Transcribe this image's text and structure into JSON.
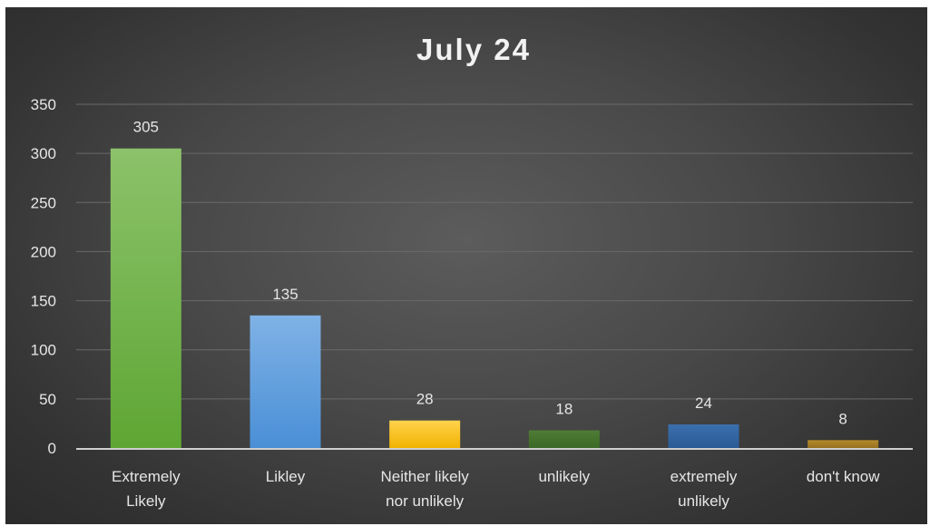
{
  "chart_data": {
    "type": "bar",
    "title": "July 24",
    "xlabel": "",
    "ylabel": "",
    "categories": [
      [
        "Extremely",
        "Likely"
      ],
      [
        "Likley"
      ],
      [
        "Neither likely",
        "nor unlikely"
      ],
      [
        "unlikely"
      ],
      [
        "extremely",
        "unlikely"
      ],
      [
        "don't know"
      ]
    ],
    "values": [
      305,
      135,
      28,
      18,
      24,
      8
    ],
    "data_labels": [
      "305",
      "135",
      "28",
      "18",
      "24",
      "8"
    ],
    "ylim": [
      0,
      350
    ],
    "yticks": [
      0,
      50,
      100,
      150,
      200,
      250,
      300,
      350
    ],
    "ytick_labels": [
      "0",
      "50",
      "100",
      "150",
      "200",
      "250",
      "300",
      "350"
    ],
    "grid": true,
    "legend": "none",
    "bar_colors": [
      {
        "top": "#8cc26a",
        "bottom": "#5ea634"
      },
      {
        "top": "#7fb2e6",
        "bottom": "#4a8fd6"
      },
      {
        "top": "#ffd34d",
        "bottom": "#f2b300"
      },
      {
        "top": "#4f7d35",
        "bottom": "#3c6a27"
      },
      {
        "top": "#3b6fae",
        "bottom": "#2a5a94"
      },
      {
        "top": "#b58a2b",
        "bottom": "#94701f"
      }
    ]
  }
}
